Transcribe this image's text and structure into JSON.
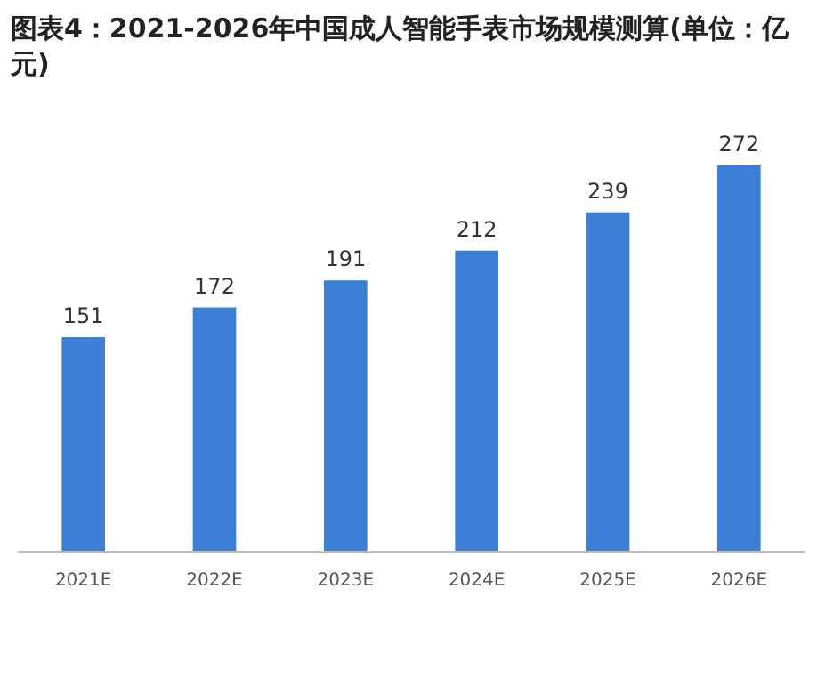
{
  "chart_data": {
    "type": "bar",
    "title": "图表4：2021-2026年中国成人智能手表市场规模测算(单位：亿元)",
    "categories": [
      "2021E",
      "2022E",
      "2023E",
      "2024E",
      "2025E",
      "2026E"
    ],
    "values": [
      151,
      172,
      191,
      212,
      239,
      272
    ],
    "color": "#3b7fd6",
    "data_labels": true
  }
}
